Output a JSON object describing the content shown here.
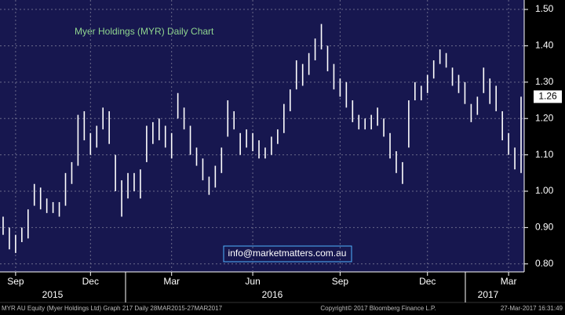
{
  "chart_data": {
    "type": "range",
    "title": "Myer Holdings (MYR) Daily Chart",
    "annotation": "info@marketmatters.com.au",
    "footer_left": "MYR AU Equity (Myer Holdings Ltd) Graph 217  Daily 28MAR2015-27MAR2017",
    "footer_center": "Copyright© 2017 Bloomberg Finance L.P.",
    "footer_right": "27-Mar-2017 16:31:49",
    "categories": [
      null,
      null,
      "Sep",
      null,
      null,
      null,
      null,
      null,
      null,
      null,
      null,
      null,
      null,
      null,
      "Dec",
      null,
      null,
      null,
      null,
      null,
      null,
      null,
      null,
      null,
      null,
      null,
      null,
      "Mar",
      null,
      null,
      null,
      null,
      null,
      null,
      null,
      null,
      null,
      null,
      null,
      null,
      "Jun",
      null,
      null,
      null,
      null,
      null,
      null,
      null,
      null,
      null,
      null,
      null,
      null,
      null,
      "Sep",
      null,
      null,
      null,
      null,
      null,
      null,
      null,
      null,
      null,
      null,
      null,
      null,
      null,
      "Dec",
      null,
      null,
      null,
      null,
      null,
      null,
      null,
      null,
      null,
      null,
      null,
      null,
      "Mar",
      null,
      null
    ],
    "years": [
      "2015",
      "2016",
      "2017"
    ],
    "high": [
      0.93,
      0.9,
      0.88,
      0.9,
      0.95,
      1.02,
      1.01,
      0.98,
      0.97,
      0.97,
      1.05,
      1.08,
      1.21,
      1.22,
      1.16,
      1.18,
      1.23,
      1.22,
      1.1,
      1.03,
      1.05,
      1.05,
      1.06,
      1.18,
      1.19,
      1.2,
      1.18,
      1.16,
      1.27,
      1.23,
      1.18,
      1.12,
      1.09,
      1.04,
      1.07,
      1.12,
      1.25,
      1.22,
      1.16,
      1.17,
      1.16,
      1.14,
      1.12,
      1.15,
      1.17,
      1.24,
      1.28,
      1.36,
      1.35,
      1.38,
      1.42,
      1.46,
      1.4,
      1.35,
      1.31,
      1.3,
      1.25,
      1.21,
      1.2,
      1.21,
      1.23,
      1.2,
      1.16,
      1.11,
      1.08,
      1.25,
      1.3,
      1.29,
      1.32,
      1.36,
      1.39,
      1.38,
      1.34,
      1.32,
      1.3,
      1.24,
      1.26,
      1.34,
      1.31,
      1.29,
      1.22,
      1.16,
      1.12,
      1.26
    ],
    "low": [
      0.88,
      0.84,
      0.83,
      0.86,
      0.87,
      0.96,
      0.95,
      0.94,
      0.94,
      0.93,
      0.96,
      1.02,
      1.07,
      1.14,
      1.1,
      1.12,
      1.17,
      1.13,
      1.0,
      0.93,
      0.98,
      1.0,
      0.98,
      1.08,
      1.13,
      1.14,
      1.12,
      1.09,
      1.2,
      1.17,
      1.1,
      1.07,
      1.03,
      0.99,
      1.01,
      1.05,
      1.15,
      1.17,
      1.1,
      1.12,
      1.11,
      1.09,
      1.09,
      1.1,
      1.13,
      1.16,
      1.22,
      1.28,
      1.29,
      1.32,
      1.36,
      1.39,
      1.33,
      1.28,
      1.26,
      1.23,
      1.19,
      1.17,
      1.17,
      1.17,
      1.18,
      1.15,
      1.09,
      1.05,
      1.02,
      1.12,
      1.25,
      1.25,
      1.27,
      1.31,
      1.35,
      1.34,
      1.29,
      1.27,
      1.24,
      1.19,
      1.21,
      1.27,
      1.24,
      1.22,
      1.14,
      1.1,
      1.06,
      1.05
    ],
    "color": "#ffffff",
    "last_value": 1.26,
    "ylim": [
      0.778,
      1.526
    ],
    "yticks": [
      {
        "value": 0.8,
        "label": "0.80"
      },
      {
        "value": 0.9,
        "label": "0.90"
      },
      {
        "value": 1.0,
        "label": "1.00"
      },
      {
        "value": 1.1,
        "label": "1.10"
      },
      {
        "value": 1.2,
        "label": "1.20"
      },
      {
        "value": 1.3,
        "label": "1.30"
      },
      {
        "value": 1.4,
        "label": "1.40"
      },
      {
        "value": 1.5,
        "label": "1.50"
      }
    ],
    "grid": true
  }
}
